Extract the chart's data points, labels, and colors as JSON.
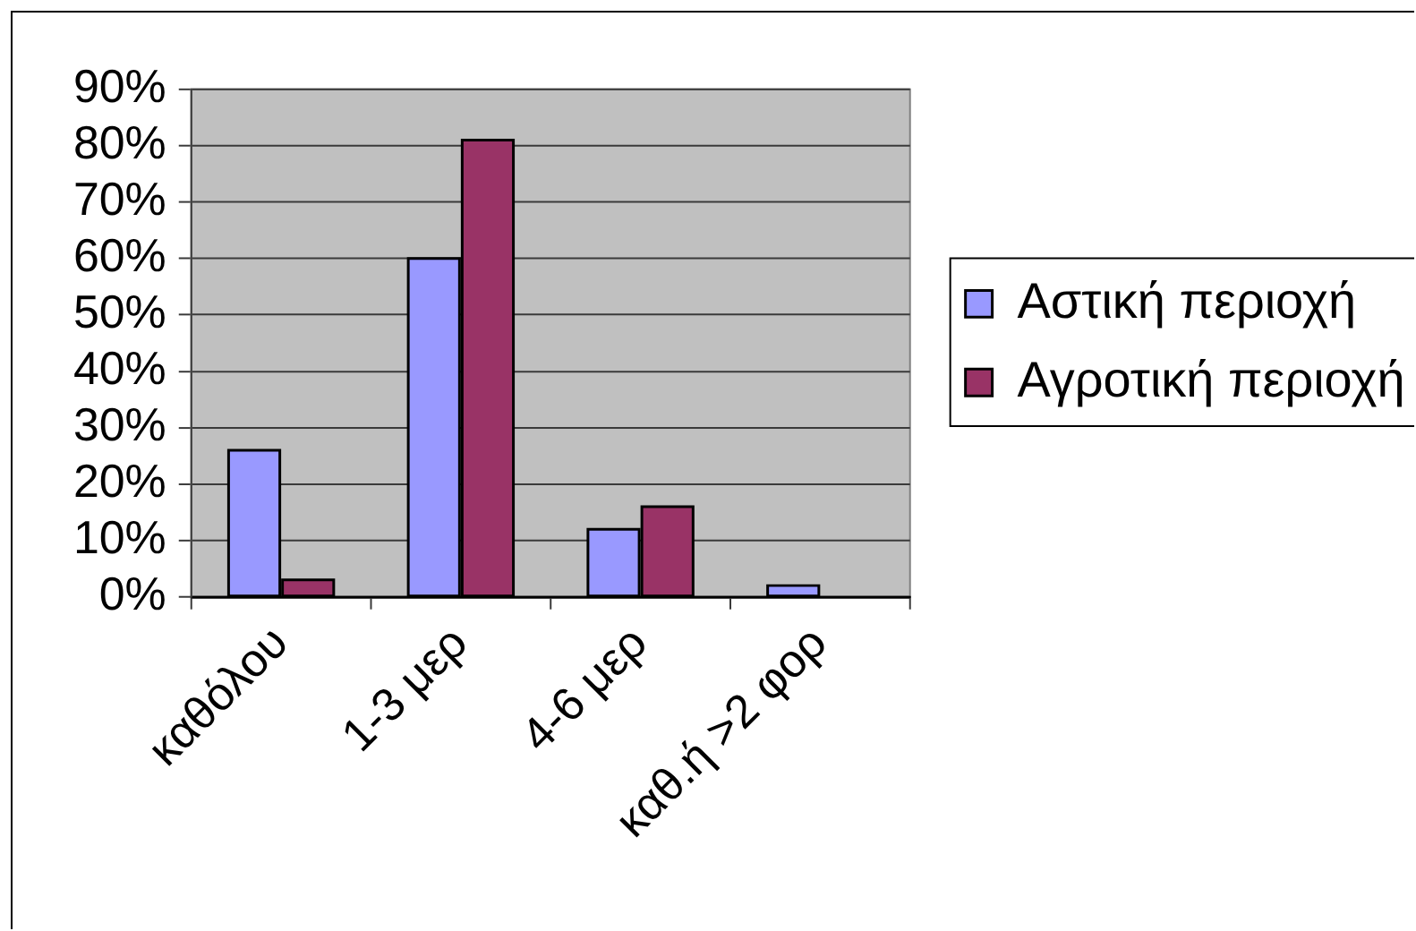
{
  "chart_data": {
    "type": "bar",
    "categories": [
      "καθόλου",
      "1-3 μερ",
      "4-6 μερ",
      "καθ.ή >2 φορ"
    ],
    "series": [
      {
        "name": "Αστική περιοχή",
        "color": "#9999ff",
        "values": [
          26,
          60,
          12,
          2
        ]
      },
      {
        "name": "Αγροτική περιοχή",
        "color": "#993366",
        "values": [
          3,
          81,
          16,
          0
        ]
      }
    ],
    "ylim": [
      0,
      90
    ],
    "yticks": [
      {
        "value": 0,
        "label": "0%"
      },
      {
        "value": 10,
        "label": "10%"
      },
      {
        "value": 20,
        "label": "20%"
      },
      {
        "value": 30,
        "label": "30%"
      },
      {
        "value": 40,
        "label": "40%"
      },
      {
        "value": 50,
        "label": "50%"
      },
      {
        "value": 60,
        "label": "60%"
      },
      {
        "value": 70,
        "label": "70%"
      },
      {
        "value": 80,
        "label": "80%"
      },
      {
        "value": 90,
        "label": "90%"
      }
    ],
    "grid": "y",
    "legend": "right"
  }
}
